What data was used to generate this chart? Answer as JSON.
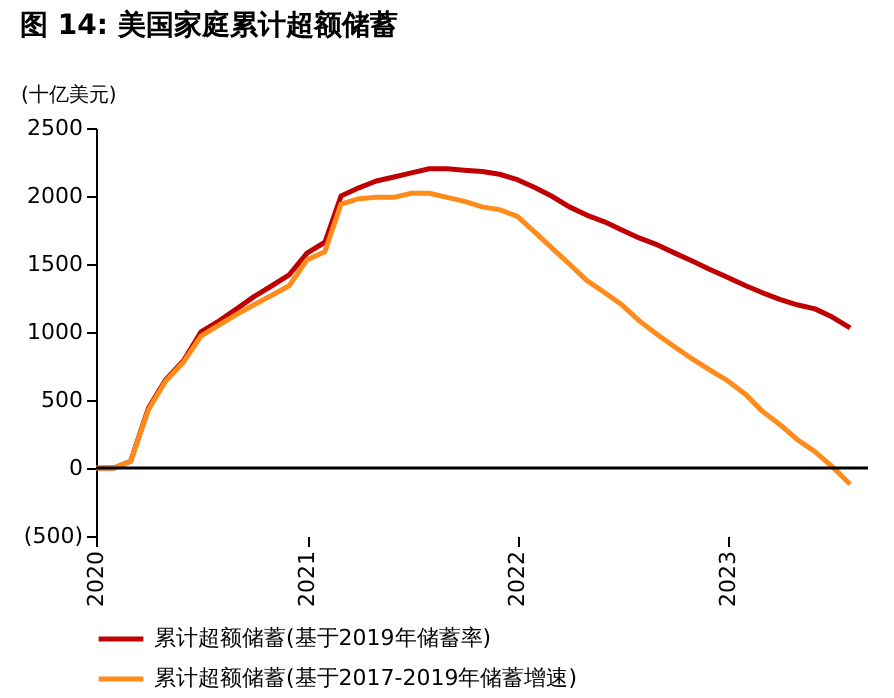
{
  "chart_data": {
    "type": "line",
    "title": "图 14: 美国家庭累计超额储蓄",
    "ylabel": "(十亿美元)",
    "x": [
      "2020-01",
      "2020-02",
      "2020-03",
      "2020-04",
      "2020-05",
      "2020-06",
      "2020-07",
      "2020-08",
      "2020-09",
      "2020-10",
      "2020-11",
      "2020-12",
      "2021-01",
      "2021-02",
      "2021-03",
      "2021-04",
      "2021-05",
      "2021-06",
      "2021-07",
      "2021-08",
      "2021-09",
      "2021-10",
      "2021-11",
      "2021-12",
      "2022-01",
      "2022-02",
      "2022-03",
      "2022-04",
      "2022-05",
      "2022-06",
      "2022-07",
      "2022-08",
      "2022-09",
      "2022-10",
      "2022-11",
      "2022-12",
      "2023-01",
      "2023-02",
      "2023-03",
      "2023-04",
      "2023-05",
      "2023-06",
      "2023-07",
      "2023-08"
    ],
    "series": [
      {
        "name": "累计超额储蓄(基于2019年储蓄率)",
        "color": "#c00000",
        "values": [
          0,
          0,
          50,
          440,
          650,
          790,
          1000,
          1080,
          1170,
          1260,
          1340,
          1420,
          1580,
          1660,
          2000,
          2060,
          2110,
          2140,
          2170,
          2200,
          2200,
          2190,
          2180,
          2160,
          2120,
          2060,
          2000,
          1920,
          1860,
          1810,
          1750,
          1690,
          1640,
          1580,
          1520,
          1460,
          1400,
          1340,
          1290,
          1240,
          1200,
          1170,
          1110,
          1030
        ]
      },
      {
        "name": "累计超额储蓄(基于2017-2019年储蓄增速)",
        "color": "#ff8c1a",
        "values": [
          0,
          0,
          50,
          430,
          640,
          780,
          970,
          1050,
          1130,
          1200,
          1270,
          1340,
          1530,
          1590,
          1940,
          1980,
          1990,
          1990,
          2020,
          2020,
          1990,
          1960,
          1920,
          1900,
          1850,
          1730,
          1620,
          1500,
          1380,
          1290,
          1200,
          1080,
          980,
          890,
          800,
          720,
          640,
          540,
          420,
          320,
          210,
          120,
          10,
          -120
        ]
      }
    ],
    "xlim": [
      "2020-01",
      "2023-09"
    ],
    "xticks": [
      "2020",
      "2021",
      "2022",
      "2023"
    ],
    "ylim": [
      -500,
      2500
    ],
    "yticks": [
      {
        "value": -500,
        "label": "(500)"
      },
      0,
      500,
      1000,
      1500,
      2000,
      2500
    ],
    "ref_lines": [
      {
        "axis": "y",
        "value": 0,
        "color": "#000000"
      }
    ],
    "grid": false,
    "legend": "bottom",
    "marker": "none",
    "line_style": "solid"
  }
}
